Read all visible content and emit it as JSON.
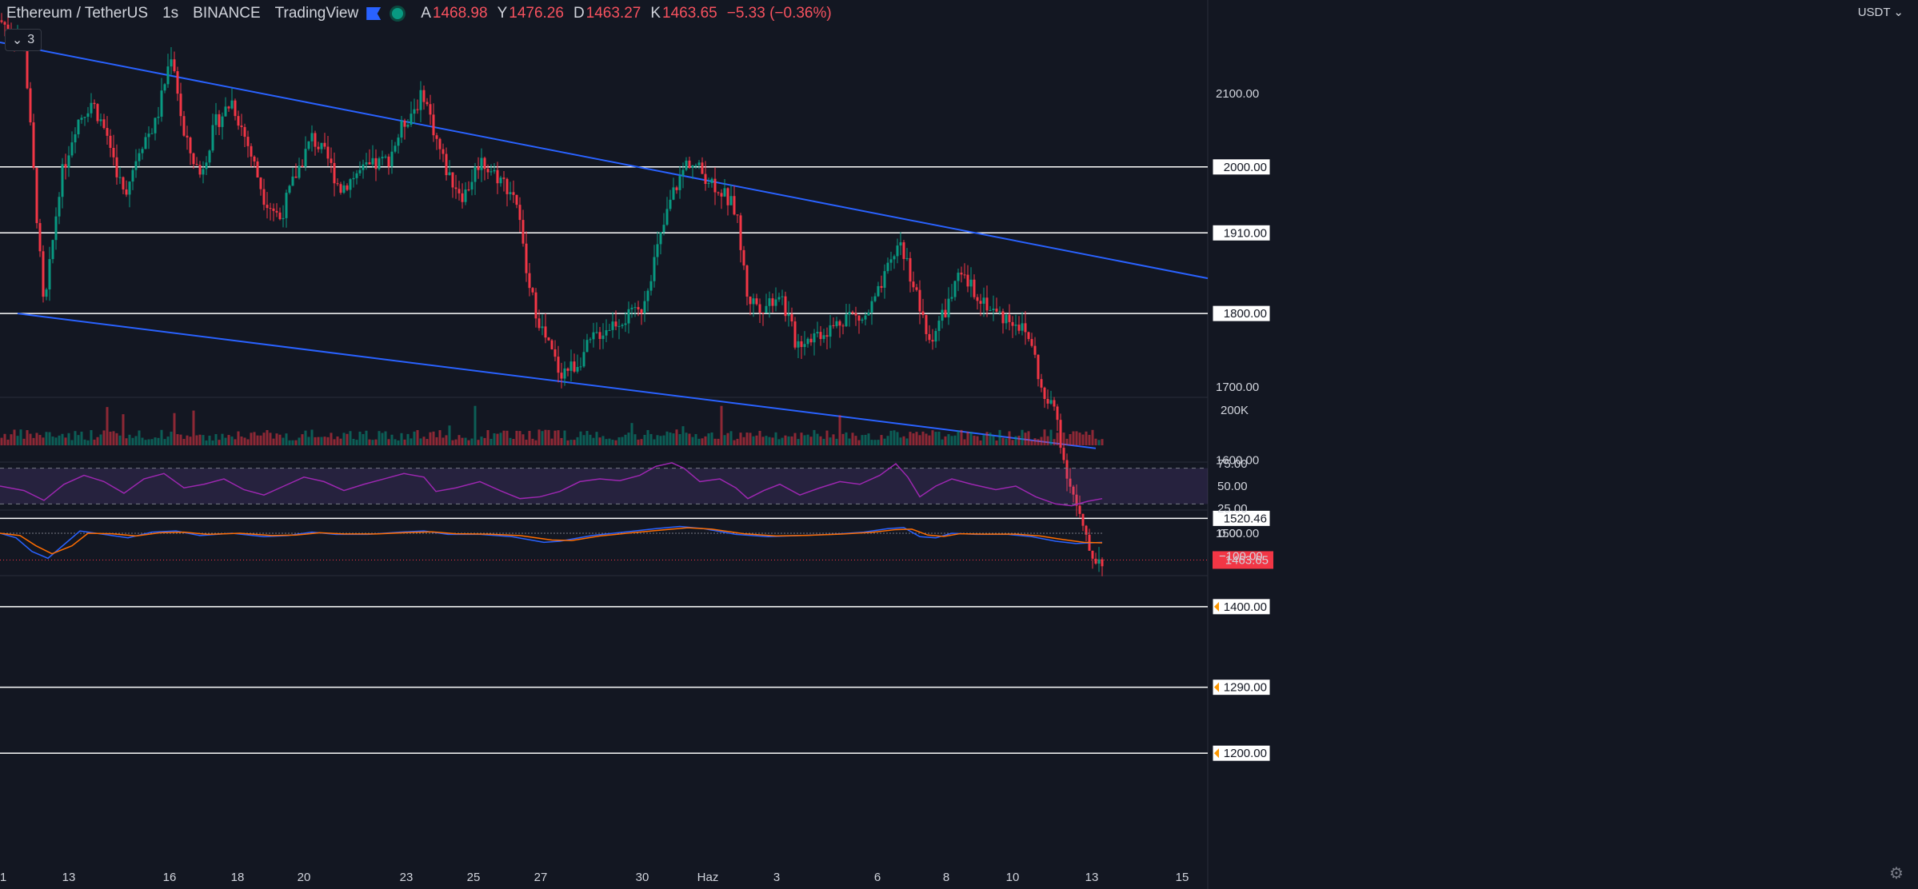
{
  "header": {
    "symbol": "Ethereum / TetherUS",
    "interval": "1s",
    "exchange": "BINANCE",
    "publisher": "TradingView",
    "open_label": "A",
    "open_value": "1468.98",
    "high_label": "Y",
    "high_value": "1476.26",
    "low_label": "D",
    "low_value": "1463.27",
    "close_label": "K",
    "close_value": "1463.65",
    "change_value": "−5.33 (−0.36%)",
    "indicators_button": "3"
  },
  "price_axis": {
    "currency": "USDT",
    "ticks": [
      "2100.00",
      "1700.00",
      "1600.00",
      "1500.00"
    ],
    "level_labels": [
      "2000.00",
      "1910.00",
      "1800.00",
      "1520.46",
      "1400.00",
      "1290.00",
      "1200.00"
    ],
    "current_price": "1463.65",
    "volume_label": "200K",
    "rsi_ticks": [
      "75.00",
      "50.00",
      "25.00"
    ],
    "macd_ticks": [
      "0.00",
      "−100.00"
    ]
  },
  "time_axis": {
    "labels": [
      "1",
      "13",
      "16",
      "18",
      "20",
      "23",
      "25",
      "27",
      "30",
      "Haz",
      "3",
      "6",
      "8",
      "10",
      "13",
      "15"
    ]
  },
  "colors": {
    "background": "#131722",
    "up": "#089981",
    "down": "#f23645",
    "trendline": "#2962ff",
    "level_line": "#ffffff",
    "price_badge": "#f23645",
    "rsi": "#9c27b0",
    "rsi_band": "#7e57c2",
    "macd": "#2962ff",
    "signal": "#ff6d00",
    "alert_marker": "#ff9800"
  },
  "chart_data": {
    "type": "candlestick",
    "title": "Ethereum / TetherUS · 1s · BINANCE",
    "horizontal_levels": [
      2000,
      1910,
      1800,
      1520.46,
      1400,
      1290,
      1200
    ],
    "trendlines": [
      {
        "name": "upper",
        "from": [
          0,
          2170
        ],
        "to": [
          1510,
          1848
        ]
      },
      {
        "name": "lower",
        "from": [
          22,
          1800
        ],
        "to": [
          1370,
          1616
        ]
      }
    ],
    "price_ylim": [
      1150,
      2215
    ],
    "close_path": [
      [
        0,
        2200
      ],
      [
        30,
        2170
      ],
      [
        55,
        1800
      ],
      [
        75,
        1980
      ],
      [
        95,
        2060
      ],
      [
        115,
        2090
      ],
      [
        135,
        2040
      ],
      [
        155,
        1960
      ],
      [
        175,
        2030
      ],
      [
        195,
        2060
      ],
      [
        215,
        2160
      ],
      [
        230,
        2040
      ],
      [
        250,
        1990
      ],
      [
        270,
        2060
      ],
      [
        290,
        2090
      ],
      [
        310,
        2030
      ],
      [
        330,
        1960
      ],
      [
        350,
        1930
      ],
      [
        370,
        1990
      ],
      [
        390,
        2040
      ],
      [
        410,
        2010
      ],
      [
        425,
        1970
      ],
      [
        445,
        1990
      ],
      [
        465,
        2000
      ],
      [
        485,
        2010
      ],
      [
        505,
        2060
      ],
      [
        530,
        2100
      ],
      [
        545,
        2040
      ],
      [
        560,
        1990
      ],
      [
        580,
        1960
      ],
      [
        600,
        2010
      ],
      [
        620,
        1990
      ],
      [
        645,
        1960
      ],
      [
        660,
        1840
      ],
      [
        680,
        1770
      ],
      [
        700,
        1720
      ],
      [
        720,
        1730
      ],
      [
        745,
        1770
      ],
      [
        770,
        1790
      ],
      [
        800,
        1800
      ],
      [
        820,
        1880
      ],
      [
        840,
        1960
      ],
      [
        860,
        2010
      ],
      [
        880,
        1990
      ],
      [
        900,
        1970
      ],
      [
        920,
        1940
      ],
      [
        935,
        1820
      ],
      [
        955,
        1810
      ],
      [
        975,
        1830
      ],
      [
        995,
        1760
      ],
      [
        1015,
        1770
      ],
      [
        1040,
        1780
      ],
      [
        1060,
        1800
      ],
      [
        1080,
        1790
      ],
      [
        1100,
        1830
      ],
      [
        1125,
        1900
      ],
      [
        1145,
        1830
      ],
      [
        1160,
        1760
      ],
      [
        1180,
        1800
      ],
      [
        1200,
        1850
      ],
      [
        1220,
        1830
      ],
      [
        1245,
        1800
      ],
      [
        1270,
        1790
      ],
      [
        1290,
        1760
      ],
      [
        1305,
        1680
      ],
      [
        1320,
        1670
      ],
      [
        1330,
        1600
      ],
      [
        1345,
        1540
      ],
      [
        1360,
        1480
      ],
      [
        1370,
        1465
      ],
      [
        1378,
        1464
      ]
    ],
    "rsi": {
      "ylim": [
        0,
        100
      ],
      "band": [
        30,
        70
      ],
      "ticks": [
        75,
        50,
        25
      ],
      "path": [
        [
          0,
          50
        ],
        [
          30,
          45
        ],
        [
          55,
          34
        ],
        [
          80,
          52
        ],
        [
          105,
          62
        ],
        [
          130,
          55
        ],
        [
          155,
          42
        ],
        [
          180,
          58
        ],
        [
          205,
          64
        ],
        [
          230,
          48
        ],
        [
          255,
          52
        ],
        [
          280,
          58
        ],
        [
          305,
          46
        ],
        [
          330,
          40
        ],
        [
          355,
          50
        ],
        [
          380,
          60
        ],
        [
          405,
          55
        ],
        [
          430,
          45
        ],
        [
          455,
          52
        ],
        [
          480,
          58
        ],
        [
          505,
          64
        ],
        [
          530,
          60
        ],
        [
          545,
          44
        ],
        [
          570,
          48
        ],
        [
          600,
          55
        ],
        [
          625,
          45
        ],
        [
          650,
          36
        ],
        [
          675,
          38
        ],
        [
          700,
          44
        ],
        [
          725,
          55
        ],
        [
          750,
          58
        ],
        [
          775,
          56
        ],
        [
          800,
          62
        ],
        [
          820,
          72
        ],
        [
          840,
          76
        ],
        [
          855,
          70
        ],
        [
          875,
          55
        ],
        [
          900,
          58
        ],
        [
          920,
          48
        ],
        [
          935,
          36
        ],
        [
          955,
          45
        ],
        [
          975,
          52
        ],
        [
          1000,
          40
        ],
        [
          1025,
          48
        ],
        [
          1050,
          55
        ],
        [
          1075,
          52
        ],
        [
          1100,
          62
        ],
        [
          1120,
          75
        ],
        [
          1135,
          60
        ],
        [
          1150,
          38
        ],
        [
          1170,
          50
        ],
        [
          1190,
          58
        ],
        [
          1215,
          52
        ],
        [
          1245,
          46
        ],
        [
          1270,
          50
        ],
        [
          1295,
          38
        ],
        [
          1320,
          30
        ],
        [
          1340,
          28
        ],
        [
          1360,
          33
        ],
        [
          1378,
          36
        ]
      ]
    },
    "macd": {
      "ylim": [
        -150,
        60
      ],
      "ticks": [
        0,
        -100
      ],
      "macd_path": [
        [
          0,
          0
        ],
        [
          20,
          -20
        ],
        [
          40,
          -80
        ],
        [
          60,
          -110
        ],
        [
          80,
          -50
        ],
        [
          100,
          10
        ],
        [
          130,
          -5
        ],
        [
          160,
          -20
        ],
        [
          190,
          5
        ],
        [
          220,
          10
        ],
        [
          250,
          -10
        ],
        [
          290,
          0
        ],
        [
          330,
          -15
        ],
        [
          360,
          -10
        ],
        [
          390,
          5
        ],
        [
          420,
          -5
        ],
        [
          460,
          -5
        ],
        [
          500,
          5
        ],
        [
          530,
          10
        ],
        [
          560,
          -5
        ],
        [
          600,
          -5
        ],
        [
          640,
          -15
        ],
        [
          680,
          -40
        ],
        [
          700,
          -35
        ],
        [
          740,
          -10
        ],
        [
          780,
          5
        ],
        [
          820,
          20
        ],
        [
          850,
          30
        ],
        [
          880,
          20
        ],
        [
          920,
          -5
        ],
        [
          960,
          -15
        ],
        [
          1000,
          -10
        ],
        [
          1040,
          -5
        ],
        [
          1080,
          5
        ],
        [
          1110,
          20
        ],
        [
          1130,
          25
        ],
        [
          1150,
          -15
        ],
        [
          1170,
          -20
        ],
        [
          1190,
          0
        ],
        [
          1220,
          -5
        ],
        [
          1260,
          -5
        ],
        [
          1290,
          -15
        ],
        [
          1320,
          -35
        ],
        [
          1345,
          -45
        ],
        [
          1378,
          -40
        ]
      ],
      "signal_path": [
        [
          0,
          0
        ],
        [
          25,
          -10
        ],
        [
          45,
          -55
        ],
        [
          65,
          -90
        ],
        [
          90,
          -55
        ],
        [
          110,
          0
        ],
        [
          140,
          -2
        ],
        [
          170,
          -12
        ],
        [
          200,
          2
        ],
        [
          230,
          5
        ],
        [
          260,
          -5
        ],
        [
          300,
          0
        ],
        [
          340,
          -10
        ],
        [
          370,
          -8
        ],
        [
          400,
          2
        ],
        [
          430,
          -3
        ],
        [
          470,
          -3
        ],
        [
          510,
          3
        ],
        [
          540,
          6
        ],
        [
          570,
          -2
        ],
        [
          610,
          -4
        ],
        [
          650,
          -10
        ],
        [
          690,
          -30
        ],
        [
          715,
          -32
        ],
        [
          750,
          -12
        ],
        [
          790,
          2
        ],
        [
          830,
          15
        ],
        [
          860,
          24
        ],
        [
          890,
          18
        ],
        [
          930,
          -2
        ],
        [
          970,
          -12
        ],
        [
          1010,
          -9
        ],
        [
          1050,
          -4
        ],
        [
          1090,
          4
        ],
        [
          1120,
          16
        ],
        [
          1140,
          18
        ],
        [
          1160,
          -8
        ],
        [
          1180,
          -14
        ],
        [
          1200,
          -2
        ],
        [
          1230,
          -4
        ],
        [
          1270,
          -4
        ],
        [
          1300,
          -12
        ],
        [
          1330,
          -28
        ],
        [
          1355,
          -40
        ],
        [
          1378,
          -42
        ]
      ]
    },
    "volume": {
      "label_value": "200K"
    }
  }
}
